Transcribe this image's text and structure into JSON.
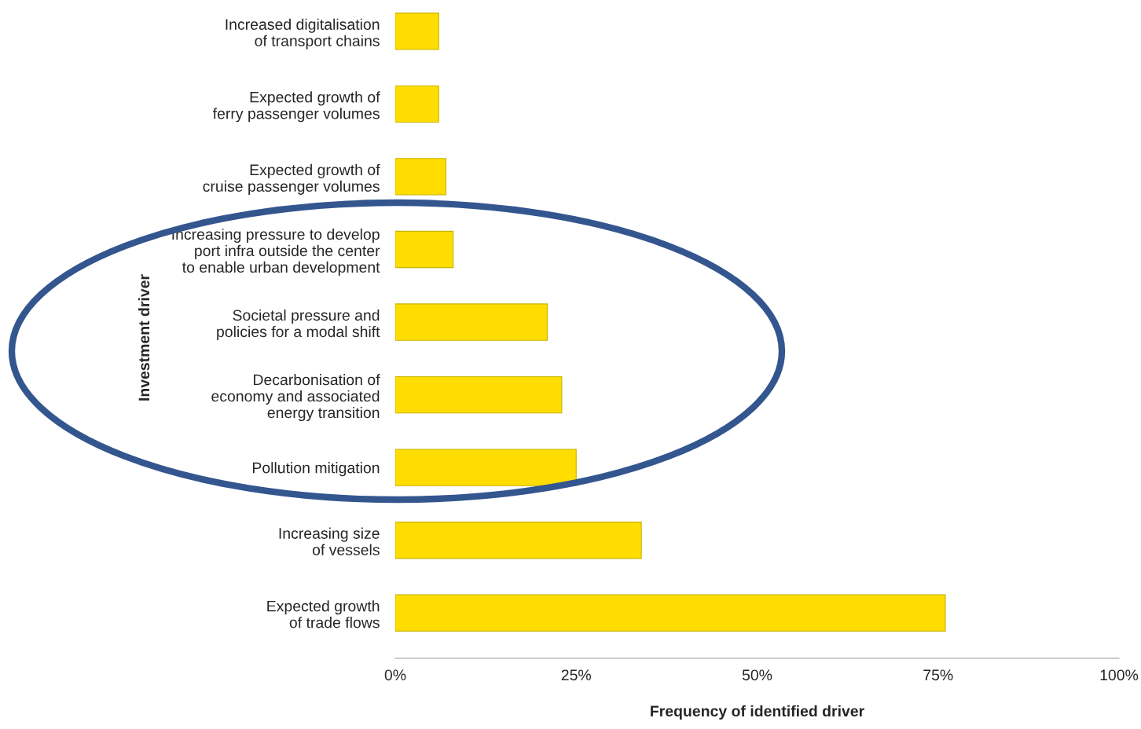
{
  "chart_data": {
    "type": "bar",
    "orientation": "horizontal",
    "categories": [
      "Increased digitalisation\nof transport chains",
      "Expected growth of\nferry passenger volumes",
      "Expected growth of\ncruise passenger volumes",
      "Increasing pressure to develop\nport infra outside the center\nto enable urban development",
      "Societal pressure and\npolicies for a modal shift",
      "Decarbonisation of\neconomy and associated\nenergy transition",
      "Pollution mitigation",
      "Increasing size\nof vessels",
      "Expected growth\nof trade flows"
    ],
    "values": [
      6,
      6,
      7,
      8,
      21,
      23,
      25,
      34,
      76
    ],
    "color": "#ffdd00",
    "xlim": [
      0,
      100
    ],
    "xticks": [
      {
        "value": 0,
        "label": "0%"
      },
      {
        "value": 25,
        "label": "25%"
      },
      {
        "value": 50,
        "label": "50%"
      },
      {
        "value": 75,
        "label": "75%"
      },
      {
        "value": 100,
        "label": "100%"
      }
    ],
    "xlabel": "Frequency of identified driver",
    "ylabel": "Investment driver",
    "grid": false,
    "legend": false
  }
}
